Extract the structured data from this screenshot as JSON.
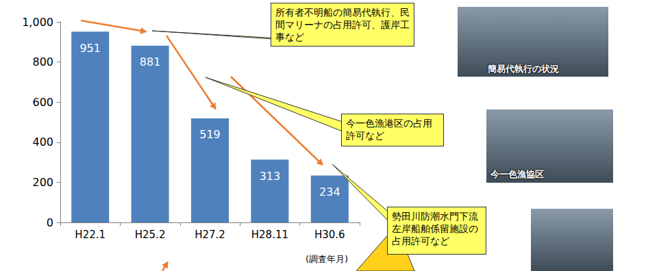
{
  "chart_data": {
    "type": "bar",
    "categories": [
      "H22.1",
      "H25.2",
      "H27.2",
      "H28.11",
      "H30.6"
    ],
    "values": [
      951,
      881,
      519,
      313,
      234
    ],
    "color": "#4f81bd",
    "ylim": [
      0,
      1000
    ],
    "yticks": [
      0,
      200,
      400,
      600,
      800,
      1000
    ],
    "xlabel": "(調査年月)",
    "grid": false,
    "data_labels": true,
    "annotations": [
      "所有者不明船の簡易代執行、民間マリーナの占用許可、護岸工事など",
      "今一色漁港区の占用許可など",
      "勢田川防潮水門下流左岸船舶係留施設の占用許可など"
    ],
    "image_captions": [
      "簡易代執行の状況",
      "今一色漁協区"
    ]
  }
}
